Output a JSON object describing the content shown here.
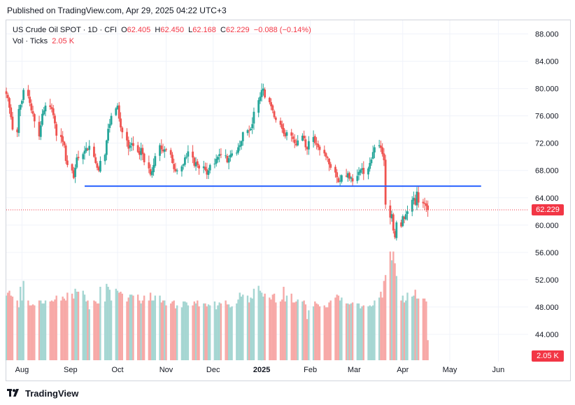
{
  "publish_line": "Published on TradingView.com, Apr 29, 2025 04:22 UTC+3",
  "legend": {
    "symbol": "US Crude Oil SPOT · 1D · CFI",
    "o_label": "O",
    "o": "62.405",
    "h_label": "H",
    "h": "62.450",
    "l_label": "L",
    "l": "62.168",
    "c_label": "C",
    "c": "62.229",
    "change": "−0.088 (−0.14%)",
    "vol_label": "Vol · Ticks",
    "vol": "2.05 K"
  },
  "price_tag": "62.229",
  "vol_tag": "2.05 K",
  "brand": "TradingView",
  "colors": {
    "up": "#26a69a",
    "down": "#ef5350",
    "line": "#2962ff",
    "last_price": "#f23645",
    "grid": "#f0f3fa",
    "axis_text": "#131722",
    "vol_up": "#a5d6d2",
    "vol_down": "#f7a9a7"
  },
  "chart_data": {
    "type": "candlestick",
    "y_ticks": [
      "88.000",
      "84.000",
      "80.000",
      "76.000",
      "72.000",
      "68.000",
      "64.000",
      "60.000",
      "56.000",
      "52.000",
      "48.000",
      "44.000"
    ],
    "x_ticks": [
      "Aug",
      "Sep",
      "Oct",
      "Nov",
      "Dec",
      "2025",
      "Feb",
      "Mar",
      "Apr",
      "May",
      "Jun"
    ],
    "ylim": [
      40.0,
      90.0
    ],
    "last_price": 62.229,
    "horizontal_line": {
      "value": 65.7,
      "from": "2024-09-10",
      "to": "2025-05-21"
    },
    "series_note": "",
    "closes": [
      79.2,
      78.6,
      77.2,
      75.8,
      74.0,
      73.6,
      77.0,
      77.6,
      78.2,
      79.8,
      78.9,
      77.9,
      76.8,
      76.3,
      75.2,
      73.0,
      74.6,
      76.3,
      76.8,
      77.5,
      77.3,
      77.0,
      76.1,
      74.9,
      73.1,
      72.9,
      72.2,
      71.7,
      69.4,
      68.8,
      68.0,
      66.9,
      68.4,
      69.9,
      69.8,
      70.4,
      70.9,
      71.3,
      71.0,
      71.6,
      70.0,
      69.1,
      68.4,
      68.0,
      69.4,
      70.3,
      72.4,
      74.1,
      74.8,
      76.0,
      77.1,
      77.5,
      75.6,
      74.3,
      73.6,
      72.4,
      71.2,
      71.7,
      72.0,
      71.6,
      70.7,
      70.3,
      71.3,
      70.4,
      69.2,
      68.3,
      67.4,
      67.9,
      68.8,
      70.1,
      71.7,
      71.1,
      70.8,
      71.1,
      71.0,
      70.3,
      69.1,
      68.2,
      67.9,
      68.0,
      68.6,
      68.9,
      69.9,
      70.0,
      70.8,
      69.9,
      68.7,
      69.2,
      68.8,
      68.3,
      68.6,
      68.1,
      67.4,
      68.0,
      68.8,
      69.0,
      69.7,
      70.0,
      70.4,
      70.3,
      70.2,
      69.2,
      69.8,
      70.3,
      70.5,
      70.6,
      71.4,
      71.7,
      72.3,
      73.6,
      73.9,
      73.8,
      74.1,
      74.8,
      76.6,
      78.3,
      78.8,
      79.8,
      80.0,
      78.7,
      78.0,
      77.4,
      76.8,
      75.8,
      75.4,
      74.7,
      74.1,
      73.4,
      73.0,
      73.6,
      73.1,
      72.6,
      72.0,
      71.7,
      72.4,
      73.1,
      72.7,
      71.4,
      71.1,
      72.3,
      72.9,
      72.0,
      71.8,
      71.4,
      71.0,
      70.5,
      70.0,
      69.8,
      68.9,
      68.4,
      67.7,
      67.0,
      66.3,
      66.5,
      67.3,
      67.1,
      67.6,
      66.8,
      67.0,
      66.4,
      67.2,
      67.8,
      68.1,
      68.3,
      67.5,
      68.3,
      69.1,
      69.6,
      70.7,
      71.4,
      71.7,
      71.3,
      70.4,
      69.5,
      63.0,
      61.1,
      61.6,
      59.2,
      58.2,
      60.4,
      59.8,
      61.3,
      60.9,
      61.6,
      62.0,
      63.7,
      64.0,
      63.0,
      64.9,
      63.3,
      63.2,
      63.1,
      62.8,
      62.2
    ],
    "volume_ticks_K": [
      6.6,
      6.9,
      7.1,
      6.6,
      6.5,
      6.1,
      5.4,
      7.5,
      6.1,
      8.1,
      6.1,
      5.6,
      5.6,
      5.7,
      5.6,
      6.1,
      6.1,
      5.8,
      5.8,
      6.1,
      6.0,
      6.1,
      6.0,
      6.2,
      6.6,
      6.1,
      6.5,
      6.3,
      6.1,
      6.9,
      6.8,
      6.3,
      7.3,
      7.0,
      7.0,
      7.1,
      6.7,
      6.0,
      6.1,
      5.2,
      6.1,
      6.0,
      5.8,
      5.8,
      7.5,
      6.0,
      7.8,
      7.5,
      7.2,
      6.1,
      7.3,
      7.1,
      6.9,
      7.0,
      6.8,
      6.0,
      6.4,
      6.7,
      6.7,
      6.6,
      6.7,
      6.1,
      5.8,
      6.1,
      6.6,
      6.1,
      6.9,
      6.1,
      6.1,
      6.6,
      6.6,
      5.9,
      6.1,
      6.1,
      5.6,
      5.8,
      6.0,
      6.1,
      5.3,
      5.6,
      5.4,
      6.0,
      6.0,
      5.9,
      5.6,
      5.6,
      6.0,
      5.8,
      6.1,
      5.5,
      5.8,
      5.8,
      5.5,
      5.7,
      5.6,
      6.0,
      5.2,
      5.6,
      5.9,
      5.8,
      6.1,
      5.7,
      5.7,
      5.4,
      5.5,
      5.8,
      6.2,
      6.9,
      6.5,
      6.7,
      6.6,
      5.9,
      6.4,
      6.3,
      7.3,
      7.6,
      7.1,
      6.9,
      6.5,
      6.8,
      6.4,
      6.2,
      6.7,
      6.8,
      5.9,
      6.0,
      6.2,
      7.5,
      6.0,
      6.6,
      6.8,
      5.9,
      5.9,
      6.0,
      6.2,
      6.0,
      6.1,
      5.7,
      4.2,
      5.1,
      5.5,
      6.0,
      5.8,
      5.7,
      5.5,
      5.6,
      5.4,
      5.4,
      5.9,
      6.1,
      6.4,
      6.7,
      6.6,
      6.1,
      6.4,
      5.8,
      5.8,
      5.7,
      5.8,
      5.9,
      5.8,
      5.8,
      5.3,
      5.5,
      5.6,
      5.5,
      5.6,
      5.5,
      5.6,
      6.1,
      6.4,
      7.0,
      6.4,
      8.1,
      8.7,
      11.1,
      10.2,
      11.1,
      9.9,
      8.6,
      6.1,
      6.6,
      5.9,
      6.1,
      6.9,
      6.5,
      6.6,
      7.2,
      6.3,
      6.3,
      6.3,
      6.3,
      6.0,
      2.05
    ],
    "x_start": "2024-07-22",
    "x_end": "2025-06-20"
  }
}
